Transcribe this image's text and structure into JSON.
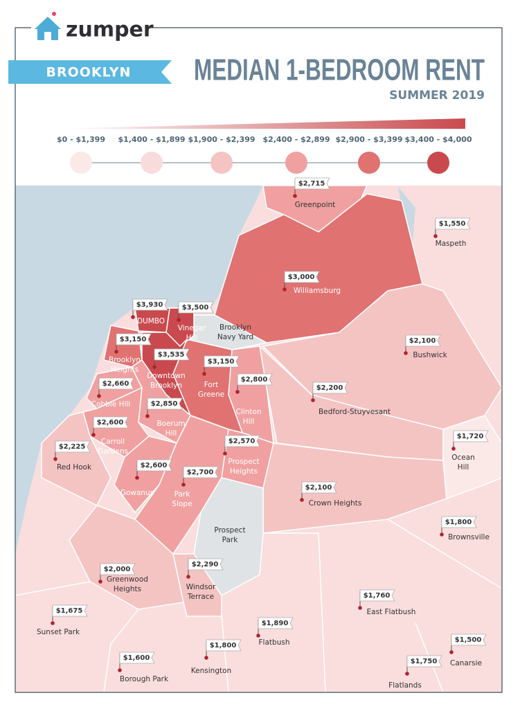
{
  "header": {
    "logo": "zumper",
    "borough": "BROOKLYN",
    "title": "MEDIAN 1-BEDROOM RENT",
    "subtitle": "SUMMER 2019"
  },
  "legend": [
    {
      "label": "$0 - $1,399",
      "color": "#fbe9e8"
    },
    {
      "label": "$1,400 - $1,899",
      "color": "#f8dcdb"
    },
    {
      "label": "$1,900 - $2,399",
      "color": "#f4c4c3"
    },
    {
      "label": "$2,400 - $2,899",
      "color": "#f0a0a0"
    },
    {
      "label": "$2,900 - $3,399",
      "color": "#e07272"
    },
    {
      "label": "$3,400 - $4,000",
      "color": "#c94a4e"
    }
  ],
  "neighborhoods": [
    {
      "name": [
        "Greenpoint"
      ],
      "price": "$2,715"
    },
    {
      "name": [
        "Maspeth"
      ],
      "price": "$1,550"
    },
    {
      "name": [
        "Williamsburg"
      ],
      "price": "$3,000"
    },
    {
      "name": [
        "Bushwick"
      ],
      "price": "$2,100"
    },
    {
      "name": [
        "DUMBO"
      ],
      "price": "$3,930"
    },
    {
      "name": [
        "Vinegar",
        "Hill"
      ],
      "price": "$3,500"
    },
    {
      "name": [
        "Brooklyn",
        "Navy Yard"
      ]
    },
    {
      "name": [
        "Brooklyn",
        "Heights"
      ],
      "price": "$3,150"
    },
    {
      "name": [
        "Downtown",
        "Brooklyn"
      ],
      "price": "$3,535"
    },
    {
      "name": [
        "Fort",
        "Greene"
      ],
      "price": "$3,150"
    },
    {
      "name": [
        "Clinton",
        "Hill"
      ],
      "price": "$2,800"
    },
    {
      "name": [
        "Bedford-Stuyvesant"
      ],
      "price": "$2,200"
    },
    {
      "name": [
        "Cobble Hill"
      ],
      "price": "$2,660"
    },
    {
      "name": [
        "Boerum",
        "Hill"
      ],
      "price": "$2,850"
    },
    {
      "name": [
        "Carroll",
        "Gardens"
      ],
      "price": "$2,600"
    },
    {
      "name": [
        "Ocean",
        "Hill"
      ],
      "price": "$1,720"
    },
    {
      "name": [
        "Prospect",
        "Heights"
      ],
      "price": "$2,570"
    },
    {
      "name": [
        "Red Hook"
      ],
      "price": "$2,225"
    },
    {
      "name": [
        "Gowanus"
      ],
      "price": "$2,600"
    },
    {
      "name": [
        "Park",
        "Slope"
      ],
      "price": "$2,700"
    },
    {
      "name": [
        "Crown Heights"
      ],
      "price": "$2,100"
    },
    {
      "name": [
        "Prospect",
        "Park"
      ]
    },
    {
      "name": [
        "Brownsville"
      ],
      "price": "$1,800"
    },
    {
      "name": [
        "Greenwood",
        "Heights"
      ],
      "price": "$2,000"
    },
    {
      "name": [
        "Windsor",
        "Terrace"
      ],
      "price": "$2,290"
    },
    {
      "name": [
        "Sunset Park"
      ],
      "price": "$1,675"
    },
    {
      "name": [
        "East Flatbush"
      ],
      "price": "$1,760"
    },
    {
      "name": [
        "Flatbush"
      ],
      "price": "$1,890"
    },
    {
      "name": [
        "Canarsie"
      ],
      "price": "$1,500"
    },
    {
      "name": [
        "Borough Park"
      ],
      "price": "$1,600"
    },
    {
      "name": [
        "Kensington"
      ],
      "price": "$1,800"
    },
    {
      "name": [
        "Flatlands"
      ],
      "price": "$1,750"
    }
  ]
}
